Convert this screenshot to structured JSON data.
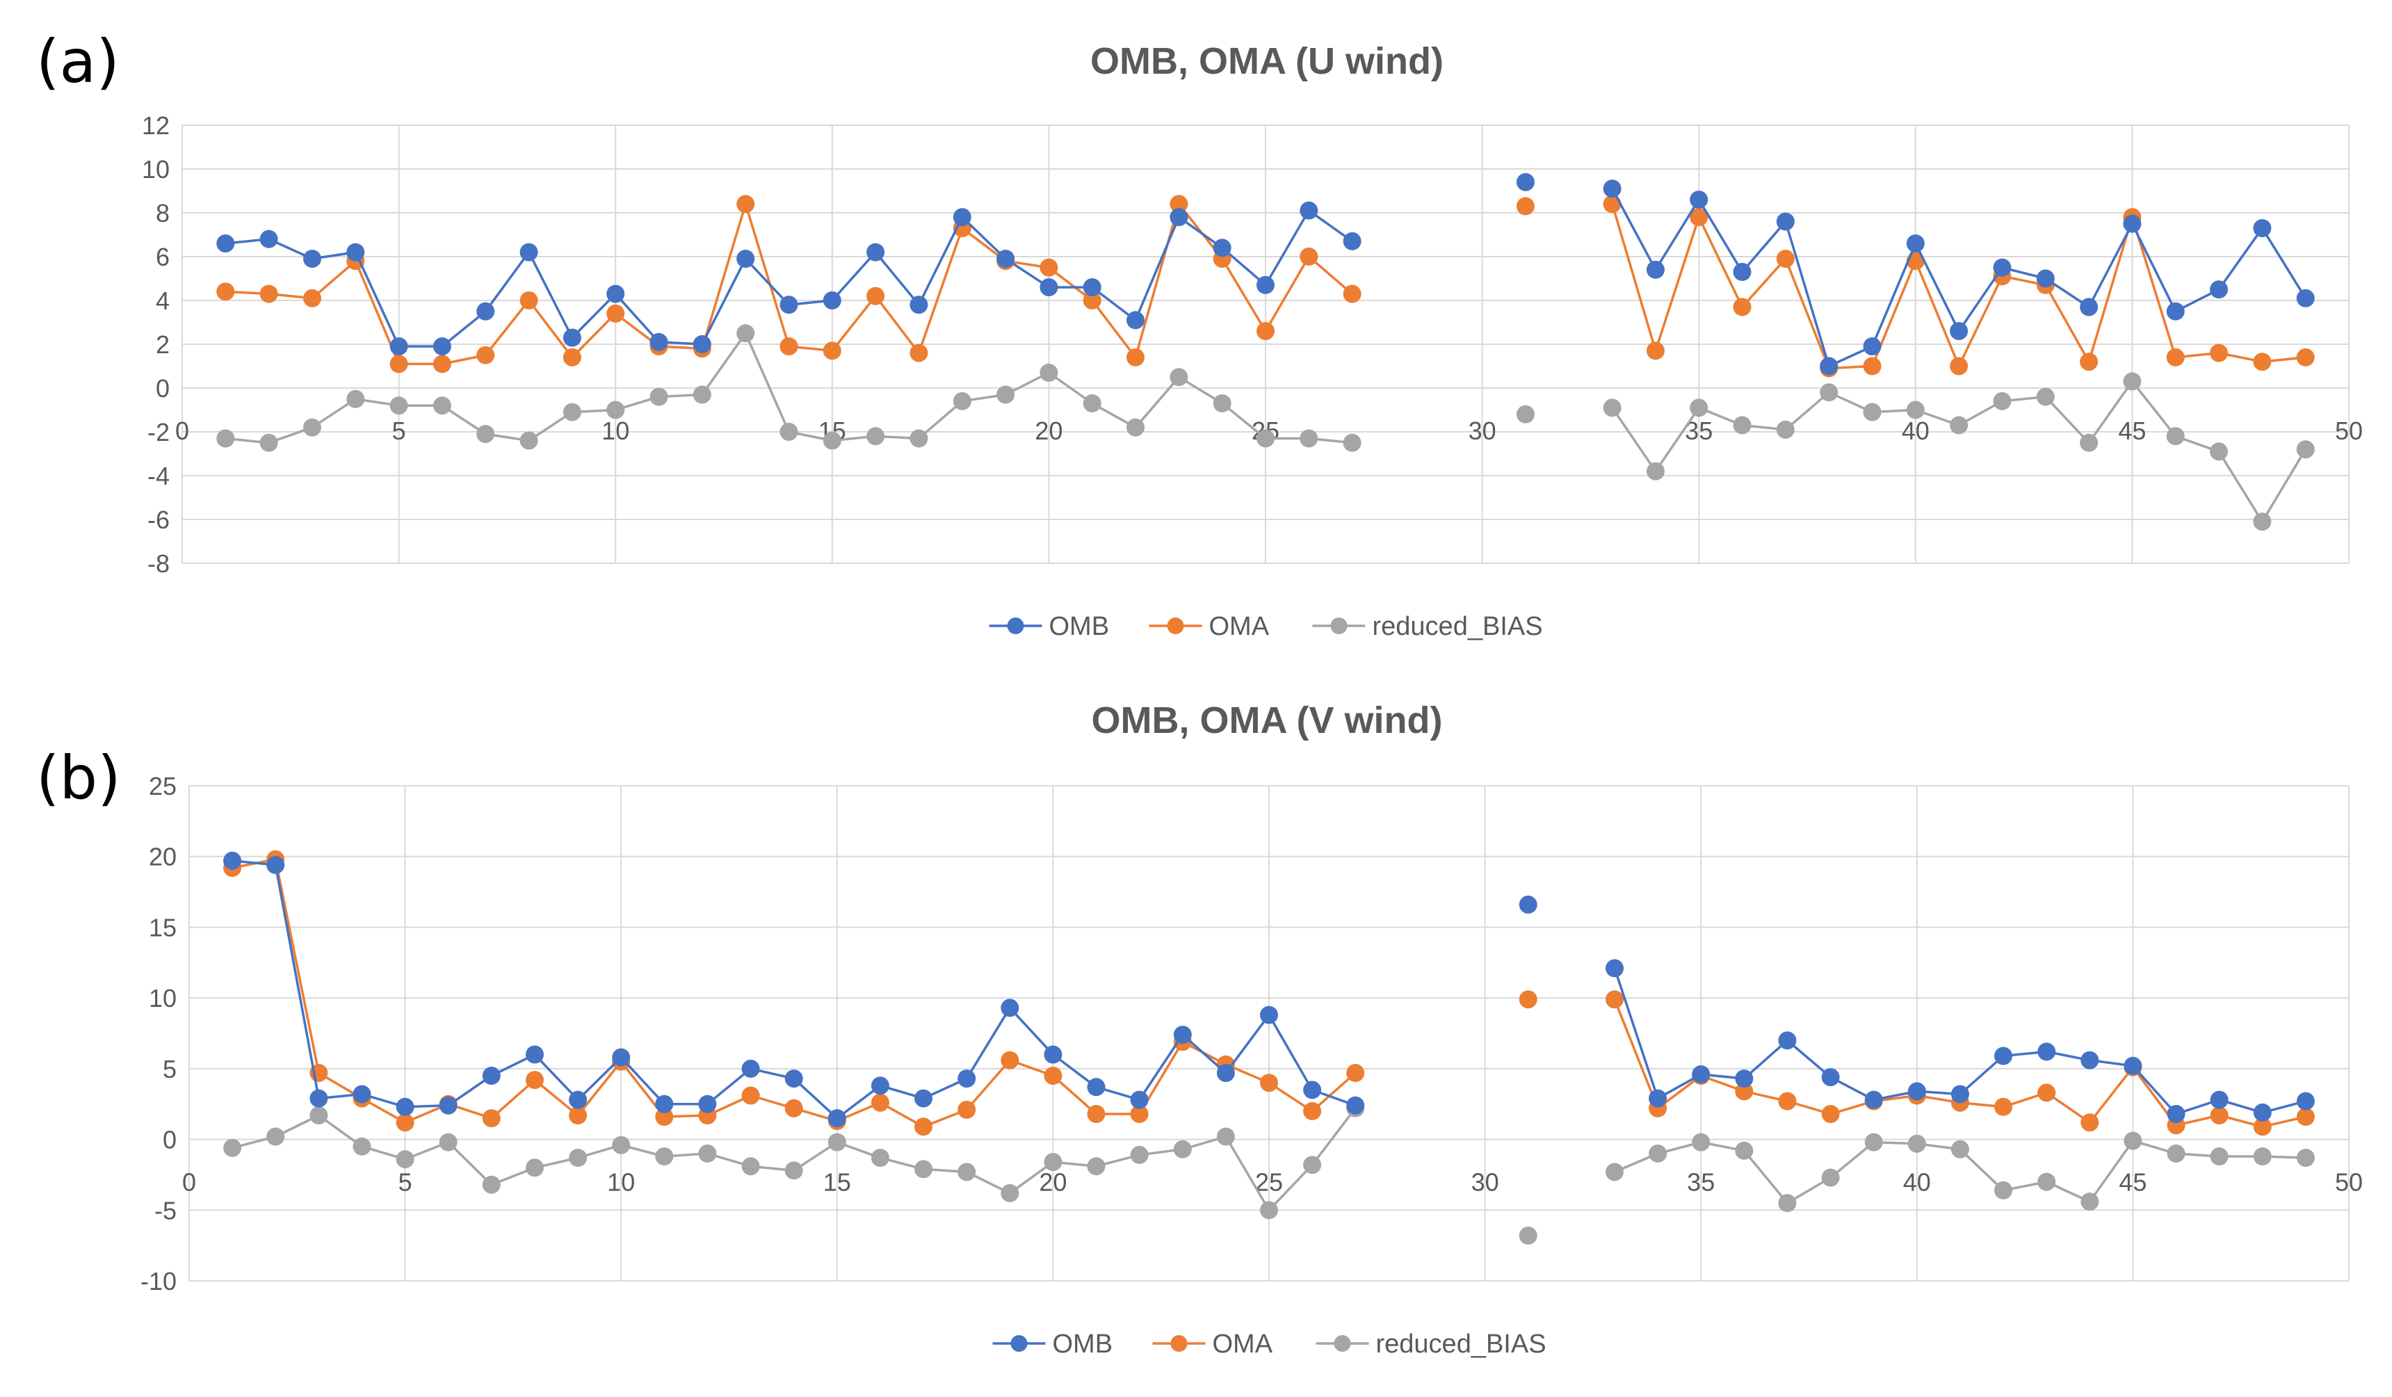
{
  "figure": {
    "colors": {
      "OMB": "#4472C4",
      "OMA": "#ED7D31",
      "reduced_BIAS": "#A5A5A5",
      "grid": "#D9D9D9",
      "text": "#595959"
    }
  },
  "chart_data": [
    {
      "panel_label": "(a)",
      "type": "line",
      "title": "OMB, OMA (U wind)",
      "xlabel": "",
      "ylabel": "",
      "xlim": [
        0,
        50
      ],
      "ylim": [
        -8,
        12
      ],
      "x_ticks": [
        0,
        5,
        10,
        15,
        20,
        25,
        30,
        35,
        40,
        45,
        50
      ],
      "y_ticks": [
        -8,
        -6,
        -4,
        -2,
        0,
        2,
        4,
        6,
        8,
        10,
        12
      ],
      "x_tick_labels": [
        "0",
        "5",
        "10",
        "15",
        "20",
        "25",
        "30",
        "35",
        "40",
        "45",
        "50"
      ],
      "y_tick_labels": [
        "-8",
        "-6",
        "-4",
        "-2",
        "0",
        "2",
        "4",
        "6",
        "8",
        "10",
        "12"
      ],
      "grid": true,
      "legend": [
        "OMB",
        "OMA",
        "reduced_BIAS"
      ],
      "legend_position": "bottom",
      "x": [
        1,
        2,
        3,
        4,
        5,
        6,
        7,
        8,
        9,
        10,
        11,
        12,
        13,
        14,
        15,
        16,
        17,
        18,
        19,
        20,
        21,
        22,
        23,
        24,
        25,
        26,
        27,
        28,
        29,
        30,
        31,
        32,
        33,
        34,
        35,
        36,
        37,
        38,
        39,
        40,
        41,
        42,
        43,
        44,
        45,
        46,
        47,
        48,
        49
      ],
      "series": [
        {
          "name": "OMB",
          "values": [
            6.6,
            6.8,
            5.9,
            6.2,
            1.9,
            1.9,
            3.5,
            6.2,
            2.3,
            4.3,
            2.1,
            2.0,
            5.9,
            3.8,
            4.0,
            6.2,
            3.8,
            7.8,
            5.9,
            4.6,
            4.6,
            3.1,
            7.8,
            6.4,
            4.7,
            8.1,
            6.7,
            null,
            null,
            null,
            9.4,
            null,
            9.1,
            5.4,
            8.6,
            5.3,
            7.6,
            1.0,
            1.9,
            6.6,
            2.6,
            5.5,
            5.0,
            3.7,
            7.5,
            3.5,
            4.5,
            7.3,
            4.1
          ]
        },
        {
          "name": "OMA",
          "values": [
            4.4,
            4.3,
            4.1,
            5.8,
            1.1,
            1.1,
            1.5,
            4.0,
            1.4,
            3.4,
            1.9,
            1.8,
            8.4,
            1.9,
            1.7,
            4.2,
            1.6,
            7.3,
            5.8,
            5.5,
            4.0,
            1.4,
            8.4,
            5.9,
            2.6,
            6.0,
            4.3,
            null,
            null,
            null,
            8.3,
            null,
            8.4,
            1.7,
            7.8,
            3.7,
            5.9,
            0.9,
            1.0,
            5.8,
            1.0,
            5.1,
            4.7,
            1.2,
            7.8,
            1.4,
            1.6,
            1.2,
            1.4
          ]
        },
        {
          "name": "reduced_BIAS",
          "values": [
            -2.3,
            -2.5,
            -1.8,
            -0.5,
            -0.8,
            -0.8,
            -2.1,
            -2.4,
            -1.1,
            -1.0,
            -0.4,
            -0.3,
            2.5,
            -2.0,
            -2.4,
            -2.2,
            -2.3,
            -0.6,
            -0.3,
            0.7,
            -0.7,
            -1.8,
            0.5,
            -0.7,
            -2.3,
            -2.3,
            -2.5,
            null,
            null,
            null,
            -1.2,
            null,
            -0.9,
            -3.8,
            -0.9,
            -1.7,
            -1.9,
            -0.2,
            -1.1,
            -1.0,
            -1.7,
            -0.6,
            -0.4,
            -2.5,
            0.3,
            -2.2,
            -2.9,
            -6.1,
            -2.8
          ]
        }
      ]
    },
    {
      "panel_label": "(b)",
      "type": "line",
      "title": "OMB, OMA (V wind)",
      "xlabel": "",
      "ylabel": "",
      "xlim": [
        0,
        50
      ],
      "ylim": [
        -10,
        25
      ],
      "x_ticks": [
        0,
        5,
        10,
        15,
        20,
        25,
        30,
        35,
        40,
        45,
        50
      ],
      "y_ticks": [
        -10,
        -5,
        0,
        5,
        10,
        15,
        20,
        25
      ],
      "x_tick_labels": [
        "0",
        "5",
        "10",
        "15",
        "20",
        "25",
        "30",
        "35",
        "40",
        "45",
        "50"
      ],
      "y_tick_labels": [
        "-10",
        "-5",
        "0",
        "5",
        "10",
        "15",
        "20",
        "25"
      ],
      "grid": true,
      "legend": [
        "OMB",
        "OMA",
        "reduced_BIAS"
      ],
      "legend_position": "bottom",
      "x": [
        1,
        2,
        3,
        4,
        5,
        6,
        7,
        8,
        9,
        10,
        11,
        12,
        13,
        14,
        15,
        16,
        17,
        18,
        19,
        20,
        21,
        22,
        23,
        24,
        25,
        26,
        27,
        28,
        29,
        30,
        31,
        32,
        33,
        34,
        35,
        36,
        37,
        38,
        39,
        40,
        41,
        42,
        43,
        44,
        45,
        46,
        47,
        48,
        49
      ],
      "series": [
        {
          "name": "OMB",
          "values": [
            19.7,
            19.4,
            2.9,
            3.2,
            2.3,
            2.4,
            4.5,
            6.0,
            2.8,
            5.8,
            2.5,
            2.5,
            5.0,
            4.3,
            1.5,
            3.8,
            2.9,
            4.3,
            9.3,
            6.0,
            3.7,
            2.8,
            7.4,
            4.7,
            8.8,
            3.5,
            2.4,
            null,
            null,
            null,
            16.6,
            null,
            12.1,
            2.9,
            4.6,
            4.3,
            7.0,
            4.4,
            2.8,
            3.4,
            3.2,
            5.9,
            6.2,
            5.6,
            5.2,
            1.8,
            2.8,
            1.9,
            2.7
          ]
        },
        {
          "name": "OMA",
          "values": [
            19.2,
            19.8,
            4.7,
            2.9,
            1.2,
            2.5,
            1.5,
            4.2,
            1.7,
            5.5,
            1.6,
            1.7,
            3.1,
            2.2,
            1.3,
            2.6,
            0.9,
            2.1,
            5.6,
            4.5,
            1.8,
            1.8,
            6.9,
            5.3,
            4.0,
            2.0,
            4.7,
            null,
            null,
            null,
            9.9,
            null,
            9.9,
            2.2,
            4.5,
            3.4,
            2.7,
            1.8,
            2.7,
            3.1,
            2.6,
            2.3,
            3.3,
            1.2,
            5.1,
            1.0,
            1.7,
            0.9,
            1.6
          ]
        },
        {
          "name": "reduced_BIAS",
          "values": [
            -0.6,
            0.2,
            1.7,
            -0.5,
            -1.4,
            -0.2,
            -3.2,
            -2.0,
            -1.3,
            -0.4,
            -1.2,
            -1.0,
            -1.9,
            -2.2,
            -0.2,
            -1.3,
            -2.1,
            -2.3,
            -3.8,
            -1.6,
            -1.9,
            -1.1,
            -0.7,
            0.2,
            -5.0,
            -1.8,
            2.2,
            null,
            null,
            null,
            -6.8,
            null,
            -2.3,
            -1.0,
            -0.2,
            -0.8,
            -4.5,
            -2.7,
            -0.2,
            -0.3,
            -0.7,
            -3.6,
            -3.0,
            -4.4,
            -0.1,
            -1.0,
            -1.2,
            -1.2,
            -1.3
          ]
        }
      ]
    }
  ]
}
